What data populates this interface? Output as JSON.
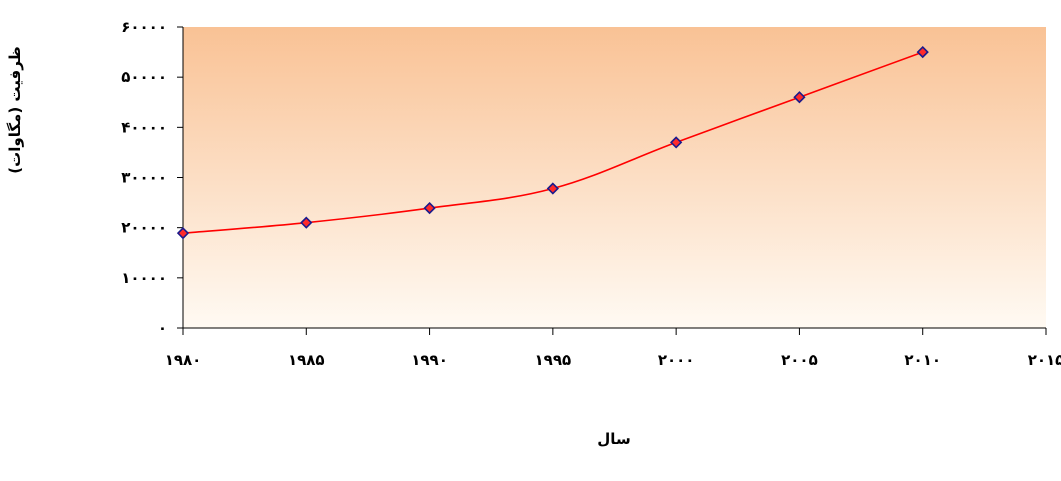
{
  "chart_data": {
    "type": "line",
    "title": "",
    "xlabel": "سال",
    "ylabel": "ظرفیت (مگاوات)",
    "xlim": [
      1980,
      2015
    ],
    "ylim": [
      0,
      60000
    ],
    "x_ticks": [
      1980,
      1985,
      1990,
      1995,
      2000,
      2005,
      2010,
      2015
    ],
    "x_tick_labels": [
      "۱۹۸۰",
      "۱۹۸۵",
      "۱۹۹۰",
      "۱۹۹۵",
      "۲۰۰۰",
      "۲۰۰۵",
      "۲۰۱۰",
      "۲۰۱۵"
    ],
    "y_ticks": [
      0,
      10000,
      20000,
      30000,
      40000,
      50000,
      60000
    ],
    "y_tick_labels": [
      "۰",
      "۱۰۰۰۰",
      "۲۰۰۰۰",
      "۳۰۰۰۰",
      "۴۰۰۰۰",
      "۵۰۰۰۰",
      "۶۰۰۰۰"
    ],
    "grid": false,
    "legend": "none",
    "series": [
      {
        "x": [
          1980,
          1985,
          1990,
          1995,
          2000,
          2005,
          2010
        ],
        "values": [
          18900,
          21000,
          23900,
          27800,
          37000,
          46000,
          55000
        ],
        "line_color": "#ff0000",
        "marker": "diamond",
        "marker_fill": "#ff2a2a",
        "marker_stroke": "#1a1a8c"
      }
    ],
    "plot_background": {
      "top_color": "#f9c295",
      "bottom_color": "#fffaf3"
    }
  }
}
